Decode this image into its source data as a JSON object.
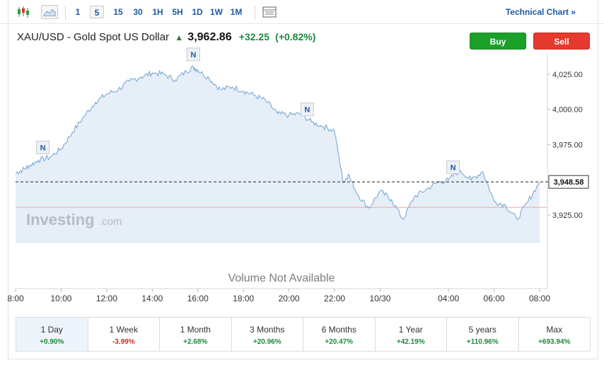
{
  "toolbar": {
    "chart_type_icons": [
      "candlestick-icon",
      "area-chart-icon"
    ],
    "intervals": [
      "1",
      "5",
      "15",
      "30",
      "1H",
      "5H",
      "1D",
      "1W",
      "1M"
    ],
    "active_interval": "5",
    "settings_icon": "table-icon",
    "technical_link": "Technical Chart »"
  },
  "header": {
    "instrument": "XAU/USD - Gold Spot US Dollar",
    "price": "3,962.86",
    "change": "+32.25",
    "change_pct": "(+0.82%)",
    "buy_label": "Buy",
    "sell_label": "Sell"
  },
  "chart_data": {
    "type": "area",
    "title": "",
    "xlabel": "",
    "ylabel": "",
    "ylim": [
      3906,
      4040
    ],
    "y_ticks": [
      "4,025.00",
      "4,000.00",
      "3,975.00",
      "3,925.00"
    ],
    "y_tick_values": [
      4025,
      4000,
      3975,
      3925
    ],
    "x_ticks": [
      "8:00",
      "10:00",
      "12:00",
      "14:00",
      "16:00",
      "18:00",
      "20:00",
      "22:00",
      "10/30",
      "04:00",
      "06:00",
      "08:00"
    ],
    "x_tick_hours": [
      0,
      2,
      4,
      6,
      8,
      10,
      12,
      14,
      16,
      19,
      21,
      23
    ],
    "current_price_label": "3,948.58",
    "current_price": 3948.58,
    "reference_line": 3930.5,
    "watermark": "Investing",
    "watermark_suffix": ".com",
    "volume_note": "Volume Not Available",
    "news_marker_label": "N",
    "news_markers_hour": [
      1.2,
      7.8,
      12.8,
      19.2
    ],
    "series": [
      {
        "hours": [
          0,
          0.3,
          0.6,
          1.0,
          1.5,
          2.0,
          2.5,
          3.0,
          3.5,
          4.0,
          4.5,
          5.0,
          5.5,
          6.0,
          6.5,
          7.0,
          7.5,
          7.8,
          8.0,
          8.5,
          9.0,
          9.5,
          10.0,
          10.5,
          11.0,
          11.5,
          12.0,
          12.5,
          13.0,
          13.5,
          14.0,
          14.2,
          14.4,
          14.6,
          15.0,
          15.5,
          16.0,
          16.5,
          17.0,
          17.5,
          18.0,
          18.5,
          19.0,
          19.5,
          20.0,
          20.5,
          21.0,
          21.5,
          22.0,
          22.5,
          23.0
        ],
        "values": [
          3955,
          3957,
          3960,
          3964,
          3966,
          3972,
          3984,
          3995,
          4005,
          4011,
          4014,
          4020,
          4023,
          4026,
          4025,
          4021,
          4027,
          4030,
          4028,
          4022,
          4014,
          4016,
          4013,
          4010,
          4006,
          3997,
          3996,
          3997,
          3991,
          3988,
          3985,
          3965,
          3948,
          3954,
          3940,
          3930,
          3942,
          3936,
          3922,
          3938,
          3943,
          3948,
          3950,
          3957,
          3950,
          3956,
          3935,
          3932,
          3922,
          3935,
          3948.58
        ]
      }
    ]
  },
  "periods": [
    {
      "label": "1 Day",
      "value": "+0.90%",
      "dir": "pos"
    },
    {
      "label": "1 Week",
      "value": "-3.99%",
      "dir": "neg"
    },
    {
      "label": "1 Month",
      "value": "+2.68%",
      "dir": "pos"
    },
    {
      "label": "3 Months",
      "value": "+20.96%",
      "dir": "pos"
    },
    {
      "label": "6 Months",
      "value": "+20.47%",
      "dir": "pos"
    },
    {
      "label": "1 Year",
      "value": "+42.19%",
      "dir": "pos"
    },
    {
      "label": "5 years",
      "value": "+110.96%",
      "dir": "pos"
    },
    {
      "label": "Max",
      "value": "+693.94%",
      "dir": "pos"
    }
  ],
  "colors": {
    "line": "#6fa3d2",
    "area": "#e6eef8",
    "accent": "#1e5aa8",
    "positive": "#1b8a3a",
    "negative": "#d32b1f",
    "reference": "#f0a8a8"
  }
}
